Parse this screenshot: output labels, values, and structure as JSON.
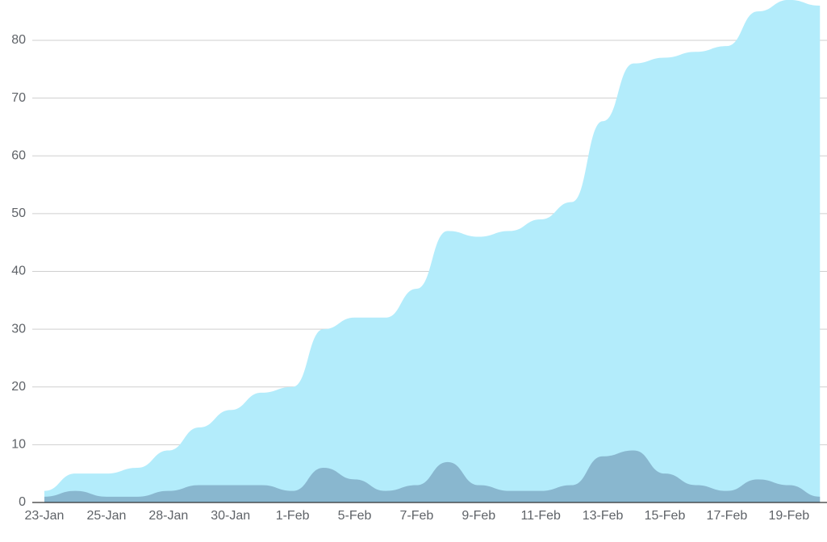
{
  "chart_data": {
    "type": "area",
    "categories": [
      "23-Jan",
      null,
      "25-Jan",
      null,
      "28-Jan",
      null,
      "30-Jan",
      null,
      "1-Feb",
      null,
      "5-Feb",
      null,
      "7-Feb",
      null,
      "9-Feb",
      null,
      "11-Feb",
      null,
      "13-Feb",
      null,
      "15-Feb",
      null,
      "17-Feb",
      null,
      "19-Feb",
      null
    ],
    "series": [
      {
        "color": "#b3ecfb",
        "values": [
          2,
          5,
          5,
          6,
          9,
          13,
          16,
          19,
          20,
          30,
          32,
          32,
          37,
          47,
          46,
          47,
          49,
          52,
          66,
          76,
          77,
          78,
          79,
          85,
          87,
          86
        ]
      },
      {
        "color": "#89b7cf",
        "values": [
          1,
          2,
          1,
          1,
          2,
          3,
          3,
          3,
          2,
          6,
          4,
          2,
          3,
          7,
          3,
          2,
          2,
          3,
          8,
          9,
          5,
          3,
          2,
          4,
          3,
          1
        ]
      }
    ],
    "ylim": [
      0,
      86
    ],
    "yticks": [
      0,
      10,
      20,
      30,
      40,
      50,
      60,
      70,
      80
    ],
    "grid": true
  }
}
